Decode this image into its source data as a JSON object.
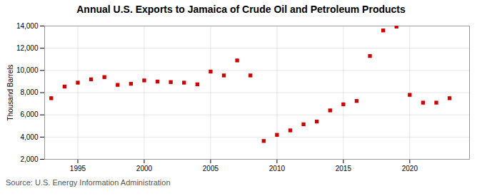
{
  "chart_data": {
    "type": "scatter",
    "title": "Annual U.S. Exports to Jamaica of Crude Oil and Petroleum Products",
    "ylabel": "Thousand Barrels",
    "source": "Source: U.S. Energy Information Administration",
    "x": [
      1993,
      1994,
      1995,
      1996,
      1997,
      1998,
      1999,
      2000,
      2001,
      2002,
      2003,
      2004,
      2005,
      2006,
      2007,
      2008,
      2009,
      2010,
      2011,
      2012,
      2013,
      2014,
      2015,
      2016,
      2017,
      2018,
      2019,
      2020,
      2021,
      2022,
      2023
    ],
    "values": [
      7500,
      8550,
      8900,
      9200,
      9400,
      8700,
      8800,
      9100,
      9000,
      8950,
      8900,
      8750,
      9900,
      9550,
      10900,
      9550,
      3650,
      4200,
      4600,
      5150,
      5400,
      6400,
      6950,
      7250,
      11300,
      13600,
      13950,
      7800,
      7100,
      7100,
      7500
    ],
    "color": "#cc0000",
    "marker": "square",
    "xlim": [
      1992.5,
      2024.5
    ],
    "xticks": [
      1995,
      2000,
      2005,
      2010,
      2015,
      2020
    ],
    "ylim": [
      2000,
      14000
    ],
    "yticks": [
      {
        "value": 2000,
        "label": "2,000"
      },
      {
        "value": 4000,
        "label": "4,000"
      },
      {
        "value": 6000,
        "label": "6,000"
      },
      {
        "value": 8000,
        "label": "8,000"
      },
      {
        "value": 10000,
        "label": "10,000"
      },
      {
        "value": 12000,
        "label": "12,000"
      },
      {
        "value": 14000,
        "label": "14,000"
      }
    ],
    "grid": true
  }
}
